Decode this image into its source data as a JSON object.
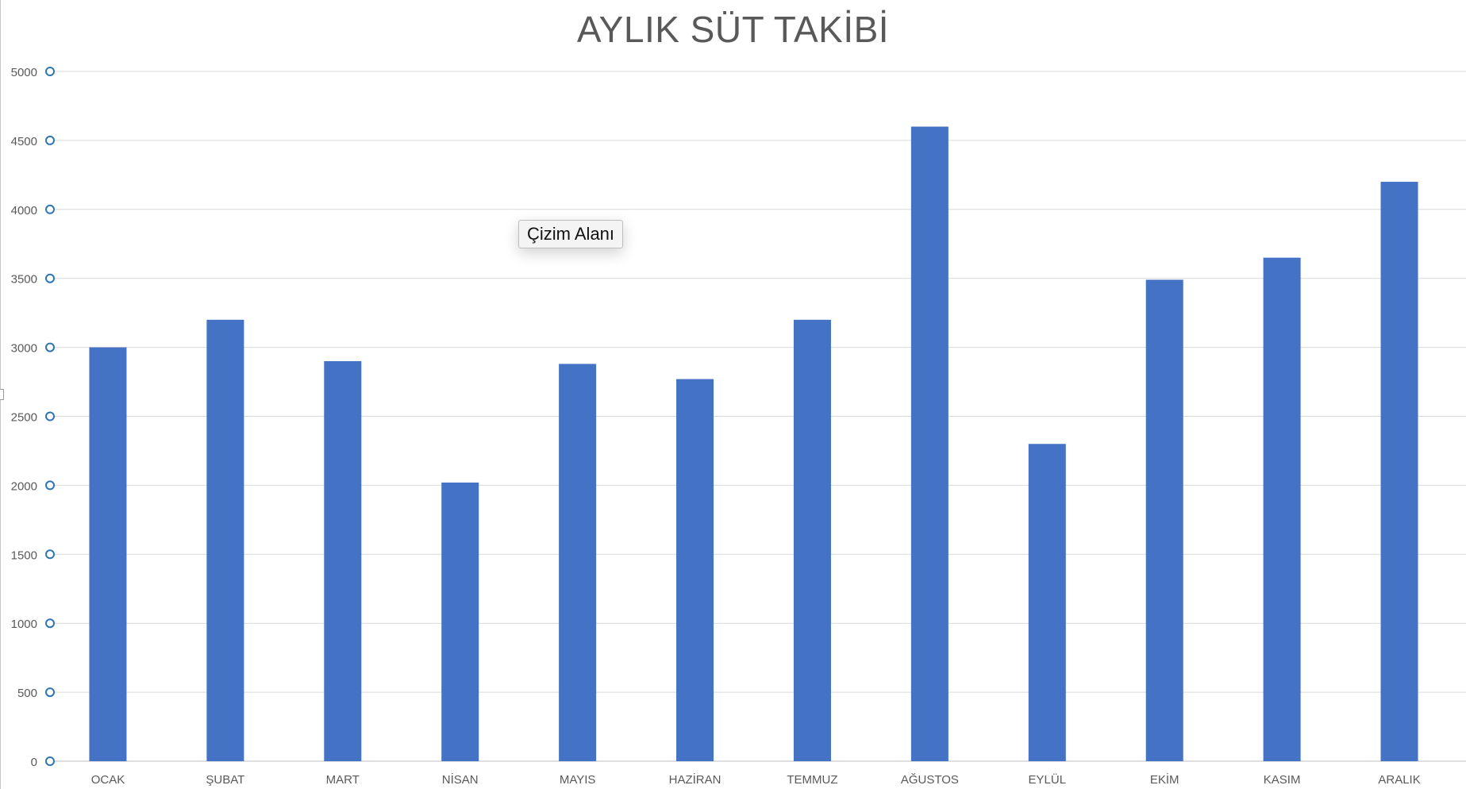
{
  "chart_data": {
    "type": "bar",
    "title": "AYLIK SÜT TAKİBİ",
    "categories": [
      "OCAK",
      "ŞUBAT",
      "MART",
      "NİSAN",
      "MAYIS",
      "HAZİRAN",
      "TEMMUZ",
      "AĞUSTOS",
      "EYLÜL",
      "EKİM",
      "KASIM",
      "ARALIK"
    ],
    "values": [
      3000,
      3200,
      2900,
      2020,
      2880,
      2770,
      3200,
      4600,
      2300,
      3490,
      3650,
      4200
    ],
    "ylim": [
      0,
      5000
    ],
    "yticks": [
      "0",
      "500",
      "1000",
      "1500",
      "2000",
      "2500",
      "3000",
      "3500",
      "4000",
      "4500",
      "5000"
    ],
    "xlabel": "",
    "ylabel": "",
    "grid": true,
    "bar_color": "#4472C4",
    "axis_handle_color": "#2E75B6"
  },
  "tooltip": {
    "text": "Çizim Alanı"
  }
}
